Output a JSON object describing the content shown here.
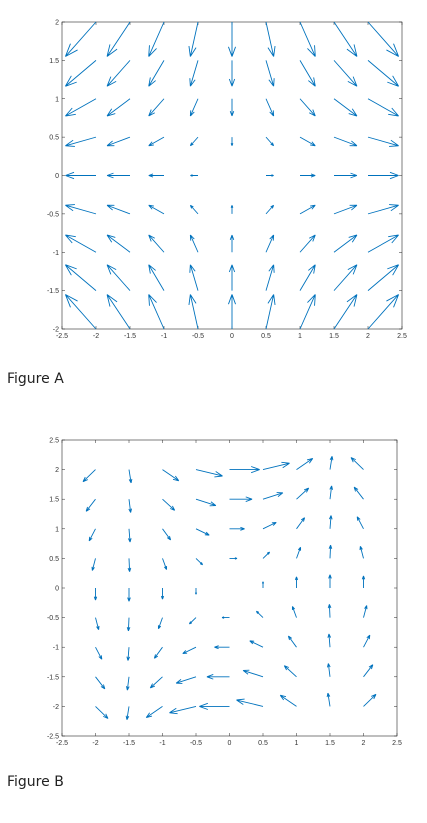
{
  "chart_data": [
    {
      "type": "quiver",
      "caption": "Figure A",
      "color": "#0072bd",
      "xlim": [
        -2.5,
        2.5
      ],
      "ylim": [
        -2,
        2
      ],
      "xticks": [
        -2.5,
        -2,
        -1.5,
        -1,
        -0.5,
        0,
        0.5,
        1,
        1.5,
        2,
        2.5
      ],
      "yticks": [
        -2,
        -1.5,
        -1,
        -0.5,
        0,
        0.5,
        1,
        1.5,
        2
      ],
      "x": [
        -2,
        -1.5,
        -1,
        -0.5,
        0,
        0.5,
        1,
        1.5,
        2
      ],
      "y": [
        2,
        1.5,
        1,
        0.5,
        0,
        -0.5,
        -1,
        -1.5,
        -2
      ],
      "u": [
        [
          -2,
          -1.5,
          -1,
          -0.5,
          0,
          0.5,
          1,
          1.5,
          2
        ],
        [
          -2,
          -1.5,
          -1,
          -0.5,
          0,
          0.5,
          1,
          1.5,
          2
        ],
        [
          -2,
          -1.5,
          -1,
          -0.5,
          0,
          0.5,
          1,
          1.5,
          2
        ],
        [
          -2,
          -1.5,
          -1,
          -0.5,
          0,
          0.5,
          1,
          1.5,
          2
        ],
        [
          -2,
          -1.5,
          -1,
          -0.5,
          0,
          0.5,
          1,
          1.5,
          2
        ],
        [
          -2,
          -1.5,
          -1,
          -0.5,
          0,
          0.5,
          1,
          1.5,
          2
        ],
        [
          -2,
          -1.5,
          -1,
          -0.5,
          0,
          0.5,
          1,
          1.5,
          2
        ],
        [
          -2,
          -1.5,
          -1,
          -0.5,
          0,
          0.5,
          1,
          1.5,
          2
        ],
        [
          -2,
          -1.5,
          -1,
          -0.5,
          0,
          0.5,
          1,
          1.5,
          2
        ]
      ],
      "v": [
        [
          -2,
          -2,
          -2,
          -2,
          -2,
          -2,
          -2,
          -2,
          -2
        ],
        [
          -1.5,
          -1.5,
          -1.5,
          -1.5,
          -1.5,
          -1.5,
          -1.5,
          -1.5,
          -1.5
        ],
        [
          -1,
          -1,
          -1,
          -1,
          -1,
          -1,
          -1,
          -1,
          -1
        ],
        [
          -0.5,
          -0.5,
          -0.5,
          -0.5,
          -0.5,
          -0.5,
          -0.5,
          -0.5,
          -0.5
        ],
        [
          0,
          0,
          0,
          0,
          0,
          0,
          0,
          0,
          0
        ],
        [
          0.5,
          0.5,
          0.5,
          0.5,
          0.5,
          0.5,
          0.5,
          0.5,
          0.5
        ],
        [
          1,
          1,
          1,
          1,
          1,
          1,
          1,
          1,
          1
        ],
        [
          1.5,
          1.5,
          1.5,
          1.5,
          1.5,
          1.5,
          1.5,
          1.5,
          1.5
        ],
        [
          2,
          2,
          2,
          2,
          2,
          2,
          2,
          2,
          2
        ]
      ]
    },
    {
      "type": "quiver",
      "caption": "Figure B",
      "color": "#0072bd",
      "xlim": [
        -2.5,
        2.5
      ],
      "ylim": [
        -2.5,
        2.5
      ],
      "xticks": [
        -2.5,
        -2,
        -1.5,
        -1,
        -0.5,
        0,
        0.5,
        1,
        1.5,
        2,
        2.5
      ],
      "yticks": [
        -2.5,
        -2,
        -1.5,
        -1,
        -0.5,
        0,
        0.5,
        1,
        1.5,
        2,
        2.5
      ],
      "x": [
        -2,
        -1.5,
        -1,
        -0.5,
        0,
        0.5,
        1,
        1.5,
        2
      ],
      "y": [
        2,
        1.5,
        1,
        0.5,
        0,
        -0.5,
        -1,
        -1.5,
        -2
      ],
      "u": [
        [
          -0.83,
          0.14,
          1.08,
          1.76,
          2,
          1.76,
          1.08,
          0.14,
          -0.83
        ],
        [
          -0.62,
          0.11,
          0.81,
          1.32,
          1.5,
          1.32,
          0.81,
          0.11,
          -0.62
        ],
        [
          -0.42,
          0.07,
          0.54,
          0.88,
          1,
          0.88,
          0.54,
          0.07,
          -0.42
        ],
        [
          -0.21,
          0.04,
          0.27,
          0.44,
          0.5,
          0.44,
          0.27,
          0.04,
          -0.21
        ],
        [
          0,
          0,
          0,
          0,
          0,
          0,
          0,
          0,
          0
        ],
        [
          0.21,
          -0.04,
          -0.27,
          -0.44,
          -0.5,
          -0.44,
          -0.27,
          -0.04,
          0.21
        ],
        [
          0.42,
          -0.07,
          -0.54,
          -0.88,
          -1,
          -0.88,
          -0.54,
          -0.07,
          0.42
        ],
        [
          0.62,
          -0.11,
          -0.81,
          -1.32,
          -1.5,
          -1.32,
          -0.81,
          -0.11,
          0.62
        ],
        [
          0.83,
          -0.14,
          -1.08,
          -1.76,
          -2,
          -1.76,
          -1.08,
          -0.14,
          0.83
        ]
      ],
      "v": [
        [
          -0.91,
          -1,
          -0.84,
          -0.48,
          0,
          0.48,
          0.84,
          1,
          0.91
        ],
        [
          -0.91,
          -1,
          -0.84,
          -0.48,
          0,
          0.48,
          0.84,
          1,
          0.91
        ],
        [
          -0.91,
          -1,
          -0.84,
          -0.48,
          0,
          0.48,
          0.84,
          1,
          0.91
        ],
        [
          -0.91,
          -1,
          -0.84,
          -0.48,
          0,
          0.48,
          0.84,
          1,
          0.91
        ],
        [
          -0.91,
          -1,
          -0.84,
          -0.48,
          0,
          0.48,
          0.84,
          1,
          0.91
        ],
        [
          -0.91,
          -1,
          -0.84,
          -0.48,
          0,
          0.48,
          0.84,
          1,
          0.91
        ],
        [
          -0.91,
          -1,
          -0.84,
          -0.48,
          0,
          0.48,
          0.84,
          1,
          0.91
        ],
        [
          -0.91,
          -1,
          -0.84,
          -0.48,
          0,
          0.48,
          0.84,
          1,
          0.91
        ],
        [
          -0.91,
          -1,
          -0.84,
          -0.48,
          0,
          0.48,
          0.84,
          1,
          0.91
        ]
      ]
    }
  ]
}
